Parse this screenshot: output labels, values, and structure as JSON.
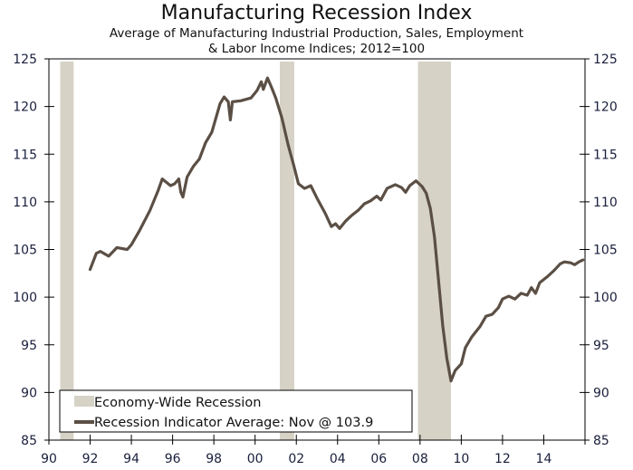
{
  "chart_data": {
    "type": "line",
    "title": "Manufacturing Recession Index",
    "subtitle_line1": "Average of Manufacturing Industrial Production, Sales, Employment",
    "subtitle_line2": "& Labor Income Indices; 2012=100",
    "xlabel": "",
    "ylabel": "",
    "xlim": [
      1990,
      2016
    ],
    "ylim": [
      85,
      125
    ],
    "x_ticks": [
      1990,
      1992,
      1994,
      1996,
      1998,
      2000,
      2002,
      2004,
      2006,
      2008,
      2010,
      2012,
      2014
    ],
    "x_tick_labels": [
      "90",
      "92",
      "94",
      "96",
      "98",
      "00",
      "02",
      "04",
      "06",
      "08",
      "10",
      "12",
      "14"
    ],
    "y_ticks": [
      85,
      90,
      95,
      100,
      105,
      110,
      115,
      120,
      125
    ],
    "y_tick_labels": [
      "85",
      "90",
      "95",
      "100",
      "105",
      "110",
      "115",
      "120",
      "125"
    ],
    "grid": false,
    "legend_position": "bottom-left",
    "recessions": [
      {
        "start": 1990.55,
        "end": 1991.2
      },
      {
        "start": 2001.2,
        "end": 2001.9
      },
      {
        "start": 2007.9,
        "end": 2009.5
      }
    ],
    "series": [
      {
        "name": "Recession Indicator Average: Nov @ 103.9",
        "color": "#5b4f45",
        "x": [
          1992.0,
          1992.3,
          1992.5,
          1992.9,
          1993.3,
          1993.8,
          1994.0,
          1994.4,
          1994.9,
          1995.3,
          1995.5,
          1995.9,
          1996.1,
          1996.3,
          1996.4,
          1996.5,
          1996.7,
          1997.0,
          1997.3,
          1997.6,
          1997.9,
          1998.3,
          1998.5,
          1998.7,
          1998.8,
          1998.9,
          1999.3,
          1999.8,
          2000.1,
          2000.3,
          2000.4,
          2000.6,
          2000.8,
          2001.0,
          2001.3,
          2001.6,
          2001.9,
          2002.1,
          2002.4,
          2002.7,
          2003.0,
          2003.4,
          2003.7,
          2003.9,
          2004.1,
          2004.4,
          2004.7,
          2005.0,
          2005.3,
          2005.6,
          2005.9,
          2006.1,
          2006.4,
          2006.8,
          2007.1,
          2007.3,
          2007.5,
          2007.8,
          2008.1,
          2008.3,
          2008.5,
          2008.7,
          2008.9,
          2009.1,
          2009.3,
          2009.5,
          2009.7,
          2010.0,
          2010.2,
          2010.5,
          2010.9,
          2011.2,
          2011.5,
          2011.8,
          2012.0,
          2012.3,
          2012.6,
          2012.9,
          2013.2,
          2013.4,
          2013.6,
          2013.8,
          2014.2,
          2014.5,
          2014.8,
          2015.0,
          2015.3,
          2015.5,
          2015.7,
          2015.9
        ],
        "values": [
          102.9,
          104.6,
          104.8,
          104.3,
          105.2,
          105.0,
          105.5,
          107.0,
          109.1,
          111.2,
          112.4,
          111.7,
          111.9,
          112.4,
          111.0,
          110.5,
          112.6,
          113.7,
          114.5,
          116.2,
          117.3,
          120.3,
          121.0,
          120.5,
          118.6,
          120.5,
          120.6,
          120.9,
          121.7,
          122.6,
          121.8,
          123.0,
          122.0,
          120.9,
          118.8,
          116.0,
          113.6,
          111.9,
          111.4,
          111.7,
          110.4,
          108.8,
          107.4,
          107.7,
          107.2,
          108.0,
          108.6,
          109.1,
          109.8,
          110.1,
          110.6,
          110.2,
          111.4,
          111.8,
          111.5,
          111.0,
          111.7,
          112.2,
          111.6,
          110.9,
          109.3,
          106.3,
          101.7,
          97.0,
          93.6,
          91.2,
          92.3,
          93.0,
          94.7,
          95.8,
          96.9,
          98.0,
          98.2,
          98.9,
          99.8,
          100.1,
          99.8,
          100.4,
          100.2,
          101.0,
          100.4,
          101.5,
          102.2,
          102.8,
          103.5,
          103.7,
          103.6,
          103.4,
          103.7,
          103.9
        ]
      }
    ],
    "legend": [
      {
        "label": "Economy-Wide Recession",
        "kind": "area",
        "color": "#d6d2c6"
      },
      {
        "label": "Recession Indicator Average: Nov @ 103.9",
        "kind": "line",
        "color": "#5b4f45"
      }
    ]
  }
}
